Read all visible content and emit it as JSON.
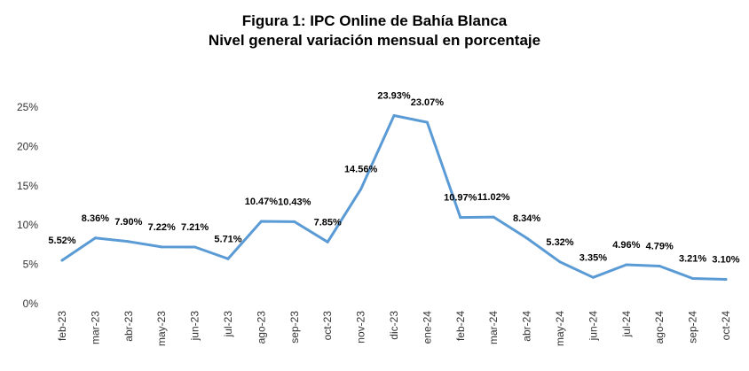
{
  "chart_data": {
    "type": "line",
    "title": "Figura 1: IPC Online de Bahía Blanca",
    "subtitle": "Nivel general variación mensual en porcentaje",
    "xlabel": "",
    "ylabel": "",
    "ylim": [
      0,
      25
    ],
    "yticks": [
      "0%",
      "5%",
      "10%",
      "15%",
      "20%",
      "25%"
    ],
    "grid": false,
    "line_color": "#5B9BD5",
    "categories": [
      "feb-23",
      "mar-23",
      "abr-23",
      "may-23",
      "jun-23",
      "jul-23",
      "ago-23",
      "sep-23",
      "oct-23",
      "nov-23",
      "dic-23",
      "ene-24",
      "feb-24",
      "mar-24",
      "abr-24",
      "may-24",
      "jun-24",
      "jul-24",
      "ago-24",
      "sep-24",
      "oct-24"
    ],
    "values": [
      5.52,
      8.36,
      7.9,
      7.22,
      7.21,
      5.71,
      10.47,
      10.43,
      7.85,
      14.56,
      23.93,
      23.07,
      10.97,
      11.02,
      8.34,
      5.32,
      3.35,
      4.96,
      4.79,
      3.21,
      3.1
    ],
    "data_labels": [
      "5.52%",
      "8.36%",
      "7.90%",
      "7.22%",
      "7.21%",
      "5.71%",
      "10.47%",
      "10.43%",
      "7.85%",
      "14.56%",
      "23.93%",
      "23.07%",
      "10.97%",
      "11.02%",
      "8.34%",
      "5.32%",
      "3.35%",
      "4.96%",
      "4.79%",
      "3.21%",
      "3.10%"
    ]
  }
}
